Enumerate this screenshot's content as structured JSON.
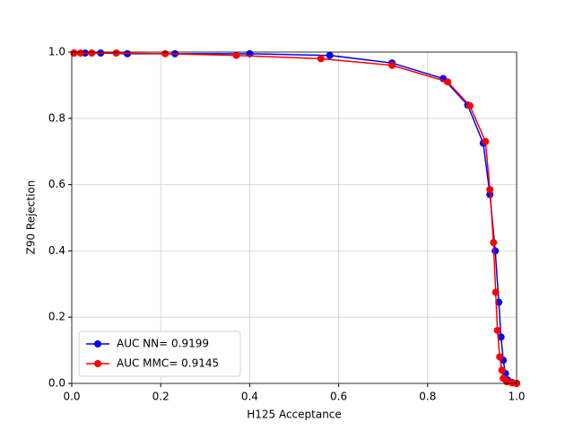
{
  "chart_data": {
    "type": "line",
    "x_label": "H125 Acceptance",
    "y_label": "Z90 Rejection",
    "xlim": [
      0,
      1
    ],
    "ylim": [
      0,
      1
    ],
    "xticks": [
      {
        "value": 0,
        "label": "0.0"
      },
      0.2,
      0.4,
      0.6,
      0.8,
      {
        "value": 1,
        "label": "1.0"
      }
    ],
    "yticks": [
      {
        "value": 0,
        "label": "0.0"
      },
      0.2,
      0.4,
      0.6,
      0.8,
      {
        "value": 1,
        "label": "1.0"
      }
    ],
    "grid": true,
    "legend": "lower left",
    "series": [
      {
        "name": "AUC NN= 0.9199",
        "color": "#0000ff",
        "x": [
          0.005,
          0.03,
          0.065,
          0.125,
          0.232,
          0.4,
          0.58,
          0.72,
          0.835,
          0.89,
          0.925,
          0.94,
          0.952,
          0.96,
          0.965,
          0.97,
          0.975,
          0.98,
          0.99,
          1.0
        ],
        "values": [
          0.997,
          0.997,
          0.997,
          0.995,
          0.995,
          0.995,
          0.99,
          0.967,
          0.92,
          0.84,
          0.725,
          0.57,
          0.4,
          0.245,
          0.14,
          0.07,
          0.03,
          0.01,
          0.003,
          0.0
        ]
      },
      {
        "name": "AUC MMC= 0.9145",
        "color": "#ff0000",
        "x": [
          0.005,
          0.02,
          0.045,
          0.1,
          0.21,
          0.37,
          0.56,
          0.72,
          0.845,
          0.895,
          0.93,
          0.94,
          0.948,
          0.953,
          0.957,
          0.962,
          0.967,
          0.97,
          0.978,
          0.99,
          1.0
        ],
        "values": [
          0.997,
          0.997,
          0.997,
          0.997,
          0.995,
          0.99,
          0.98,
          0.96,
          0.91,
          0.838,
          0.73,
          0.585,
          0.425,
          0.275,
          0.16,
          0.08,
          0.04,
          0.015,
          0.005,
          0.002,
          0.0
        ]
      }
    ]
  }
}
